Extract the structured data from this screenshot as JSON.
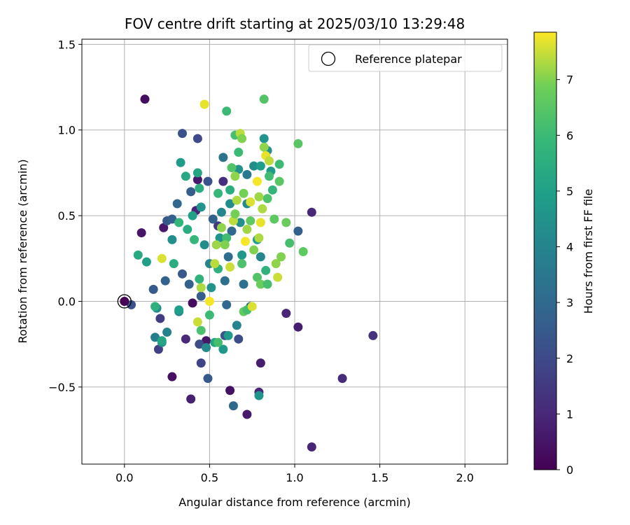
{
  "chart_data": {
    "type": "scatter",
    "title": "FOV centre drift starting at 2025/03/10 13:29:48",
    "xlabel": "Angular distance from reference (arcmin)",
    "ylabel": "Rotation from reference (arcmin)",
    "xlim": [
      -0.25,
      2.25
    ],
    "ylim": [
      -0.95,
      1.53
    ],
    "xticks": [
      0.0,
      0.5,
      1.0,
      1.5,
      2.0
    ],
    "xtick_labels": [
      "0.0",
      "0.5",
      "1.0",
      "1.5",
      "2.0"
    ],
    "yticks": [
      -0.5,
      0.0,
      0.5,
      1.0,
      1.5
    ],
    "ytick_labels": [
      "−0.5",
      "0.0",
      "0.5",
      "1.0",
      "1.5"
    ],
    "grid": true,
    "colormap": "viridis",
    "colorbar": {
      "label": "Hours from first FF file",
      "range": [
        0,
        7.85
      ],
      "ticks": [
        0,
        1,
        2,
        3,
        4,
        5,
        6,
        7
      ],
      "tick_labels": [
        "0",
        "1",
        "2",
        "3",
        "4",
        "5",
        "6",
        "7"
      ]
    },
    "legend": {
      "position": "top-right",
      "entries": [
        "Reference platepar"
      ]
    },
    "reference_point": {
      "x": 0.0,
      "y": 0.0
    },
    "points": [
      {
        "x": 0.12,
        "y": 1.18,
        "c": 0.3
      },
      {
        "x": 0.1,
        "y": 0.4,
        "c": 0.5
      },
      {
        "x": 0.23,
        "y": 0.43,
        "c": 0.6
      },
      {
        "x": 0.28,
        "y": -0.44,
        "c": 0.4
      },
      {
        "x": 0.39,
        "y": -0.57,
        "c": 0.8
      },
      {
        "x": 0.36,
        "y": -0.22,
        "c": 1.0
      },
      {
        "x": 0.4,
        "y": -0.01,
        "c": 0.3
      },
      {
        "x": 0.48,
        "y": -0.23,
        "c": 0.5
      },
      {
        "x": 0.62,
        "y": -0.52,
        "c": 0.4
      },
      {
        "x": 0.72,
        "y": -0.66,
        "c": 0.6
      },
      {
        "x": 0.79,
        "y": -0.53,
        "c": 0.9
      },
      {
        "x": 0.8,
        "y": -0.36,
        "c": 0.7
      },
      {
        "x": 1.1,
        "y": -0.85,
        "c": 0.9
      },
      {
        "x": 1.28,
        "y": -0.45,
        "c": 1.1
      },
      {
        "x": 1.46,
        "y": -0.2,
        "c": 1.3
      },
      {
        "x": 1.02,
        "y": -0.15,
        "c": 0.7
      },
      {
        "x": 0.95,
        "y": -0.07,
        "c": 0.9
      },
      {
        "x": 1.1,
        "y": 0.52,
        "c": 1.0
      },
      {
        "x": 0.43,
        "y": 0.71,
        "c": 0.6
      },
      {
        "x": 0.58,
        "y": 0.7,
        "c": 1.2
      },
      {
        "x": 0.55,
        "y": 0.44,
        "c": 1.5
      },
      {
        "x": 0.42,
        "y": 0.53,
        "c": 0.9
      },
      {
        "x": 0.04,
        "y": -0.02,
        "c": 2.2
      },
      {
        "x": 0.17,
        "y": 0.07,
        "c": 2.5
      },
      {
        "x": 0.21,
        "y": -0.1,
        "c": 1.6
      },
      {
        "x": 0.2,
        "y": -0.28,
        "c": 1.7
      },
      {
        "x": 0.24,
        "y": 0.12,
        "c": 2.8
      },
      {
        "x": 0.25,
        "y": 0.47,
        "c": 2.4
      },
      {
        "x": 0.34,
        "y": 0.98,
        "c": 2.2
      },
      {
        "x": 0.43,
        "y": 0.95,
        "c": 2.0
      },
      {
        "x": 0.49,
        "y": 0.7,
        "c": 2.3
      },
      {
        "x": 0.39,
        "y": 0.64,
        "c": 2.6
      },
      {
        "x": 0.31,
        "y": 0.57,
        "c": 2.9
      },
      {
        "x": 0.28,
        "y": 0.48,
        "c": 2.7
      },
      {
        "x": 0.44,
        "y": -0.25,
        "c": 2.1
      },
      {
        "x": 0.45,
        "y": -0.36,
        "c": 1.8
      },
      {
        "x": 0.49,
        "y": -0.45,
        "c": 2.5
      },
      {
        "x": 0.59,
        "y": -0.2,
        "c": 2.3
      },
      {
        "x": 0.67,
        "y": -0.22,
        "c": 2.1
      },
      {
        "x": 0.64,
        "y": -0.61,
        "c": 3.0
      },
      {
        "x": 0.38,
        "y": 0.1,
        "c": 2.8
      },
      {
        "x": 0.34,
        "y": 0.16,
        "c": 2.4
      },
      {
        "x": 0.45,
        "y": 0.03,
        "c": 2.6
      },
      {
        "x": 0.6,
        "y": -0.02,
        "c": 2.9
      },
      {
        "x": 1.02,
        "y": 0.41,
        "c": 2.7
      },
      {
        "x": 0.7,
        "y": 0.1,
        "c": 3.3
      },
      {
        "x": 0.58,
        "y": 0.84,
        "c": 3.4
      },
      {
        "x": 0.61,
        "y": 0.26,
        "c": 3.1
      },
      {
        "x": 0.52,
        "y": 0.48,
        "c": 2.8
      },
      {
        "x": 0.63,
        "y": 0.41,
        "c": 3.0
      },
      {
        "x": 0.59,
        "y": 0.12,
        "c": 3.2
      },
      {
        "x": 0.72,
        "y": 0.74,
        "c": 3.6
      },
      {
        "x": 0.74,
        "y": -0.03,
        "c": 3.1
      },
      {
        "x": 0.18,
        "y": -0.21,
        "c": 3.8
      },
      {
        "x": 0.19,
        "y": -0.04,
        "c": 4.2
      },
      {
        "x": 0.25,
        "y": -0.18,
        "c": 3.9
      },
      {
        "x": 0.22,
        "y": -0.24,
        "c": 4.5
      },
      {
        "x": 0.32,
        "y": -0.06,
        "c": 4.1
      },
      {
        "x": 0.28,
        "y": 0.36,
        "c": 4.4
      },
      {
        "x": 0.33,
        "y": 0.81,
        "c": 4.8
      },
      {
        "x": 0.36,
        "y": 0.73,
        "c": 5.3
      },
      {
        "x": 0.43,
        "y": 0.75,
        "c": 5.2
      },
      {
        "x": 0.44,
        "y": 0.66,
        "c": 5.5
      },
      {
        "x": 0.4,
        "y": 0.5,
        "c": 5.0
      },
      {
        "x": 0.45,
        "y": 0.55,
        "c": 4.6
      },
      {
        "x": 0.47,
        "y": 0.33,
        "c": 4.3
      },
      {
        "x": 0.5,
        "y": 0.22,
        "c": 4.0
      },
      {
        "x": 0.56,
        "y": 0.37,
        "c": 4.6
      },
      {
        "x": 0.57,
        "y": 0.52,
        "c": 4.1
      },
      {
        "x": 0.62,
        "y": 0.57,
        "c": 4.3
      },
      {
        "x": 0.67,
        "y": 0.77,
        "c": 4.5
      },
      {
        "x": 0.66,
        "y": -0.14,
        "c": 4.0
      },
      {
        "x": 0.61,
        "y": -0.2,
        "c": 4.8
      },
      {
        "x": 0.48,
        "y": -0.27,
        "c": 4.2
      },
      {
        "x": 0.53,
        "y": -0.24,
        "c": 5.2
      },
      {
        "x": 0.58,
        "y": -0.28,
        "c": 4.7
      },
      {
        "x": 0.79,
        "y": -0.55,
        "c": 4.6
      },
      {
        "x": 0.76,
        "y": 0.79,
        "c": 4.3
      },
      {
        "x": 0.8,
        "y": 0.79,
        "c": 4.9
      },
      {
        "x": 0.8,
        "y": 0.26,
        "c": 4.1
      },
      {
        "x": 0.78,
        "y": 0.36,
        "c": 4.9
      },
      {
        "x": 0.82,
        "y": 0.95,
        "c": 4.6
      },
      {
        "x": 0.84,
        "y": 0.88,
        "c": 4.4
      },
      {
        "x": 0.86,
        "y": 0.76,
        "c": 4.8
      },
      {
        "x": 0.72,
        "y": 0.57,
        "c": 4.2
      },
      {
        "x": 0.69,
        "y": 0.27,
        "c": 4.7
      },
      {
        "x": 0.68,
        "y": 0.46,
        "c": 4.4
      },
      {
        "x": 0.32,
        "y": -0.05,
        "c": 4.9
      },
      {
        "x": 0.51,
        "y": 0.08,
        "c": 4.5
      },
      {
        "x": 0.08,
        "y": 0.27,
        "c": 5.3
      },
      {
        "x": 0.13,
        "y": 0.23,
        "c": 5.0
      },
      {
        "x": 0.18,
        "y": -0.03,
        "c": 5.6
      },
      {
        "x": 0.22,
        "y": -0.23,
        "c": 5.2
      },
      {
        "x": 0.29,
        "y": 0.22,
        "c": 5.5
      },
      {
        "x": 0.32,
        "y": 0.46,
        "c": 5.8
      },
      {
        "x": 0.37,
        "y": 0.42,
        "c": 5.4
      },
      {
        "x": 0.41,
        "y": 0.36,
        "c": 5.9
      },
      {
        "x": 0.44,
        "y": 0.13,
        "c": 5.7
      },
      {
        "x": 0.45,
        "y": -0.17,
        "c": 6.3
      },
      {
        "x": 0.5,
        "y": -0.08,
        "c": 6.0
      },
      {
        "x": 0.55,
        "y": -0.24,
        "c": 6.2
      },
      {
        "x": 0.55,
        "y": 0.19,
        "c": 5.6
      },
      {
        "x": 0.55,
        "y": 0.63,
        "c": 5.9
      },
      {
        "x": 0.6,
        "y": 1.11,
        "c": 6.0
      },
      {
        "x": 0.63,
        "y": 0.78,
        "c": 6.4
      },
      {
        "x": 0.65,
        "y": 0.97,
        "c": 6.2
      },
      {
        "x": 0.67,
        "y": 0.87,
        "c": 6.0
      },
      {
        "x": 0.69,
        "y": 0.22,
        "c": 6.3
      },
      {
        "x": 0.7,
        "y": -0.06,
        "c": 6.7
      },
      {
        "x": 0.72,
        "y": -0.05,
        "c": 6.2
      },
      {
        "x": 0.78,
        "y": 0.14,
        "c": 6.4
      },
      {
        "x": 0.8,
        "y": 0.1,
        "c": 6.8
      },
      {
        "x": 0.83,
        "y": 0.18,
        "c": 5.7
      },
      {
        "x": 0.84,
        "y": 0.1,
        "c": 6.2
      },
      {
        "x": 0.84,
        "y": 0.6,
        "c": 6.3
      },
      {
        "x": 0.88,
        "y": 0.48,
        "c": 6.6
      },
      {
        "x": 0.91,
        "y": 0.8,
        "c": 6.0
      },
      {
        "x": 0.91,
        "y": 0.7,
        "c": 6.5
      },
      {
        "x": 0.95,
        "y": 0.46,
        "c": 6.8
      },
      {
        "x": 0.97,
        "y": 0.34,
        "c": 6.2
      },
      {
        "x": 1.02,
        "y": 0.92,
        "c": 6.5
      },
      {
        "x": 1.05,
        "y": 0.29,
        "c": 6.6
      },
      {
        "x": 0.82,
        "y": 1.18,
        "c": 6.4
      },
      {
        "x": 0.85,
        "y": 0.73,
        "c": 6.1
      },
      {
        "x": 0.87,
        "y": 0.65,
        "c": 5.8
      },
      {
        "x": 0.74,
        "y": 0.47,
        "c": 6.6
      },
      {
        "x": 0.6,
        "y": 0.37,
        "c": 6.1
      },
      {
        "x": 0.62,
        "y": 0.65,
        "c": 5.5
      },
      {
        "x": 0.22,
        "y": 0.25,
        "c": 7.6
      },
      {
        "x": 0.43,
        "y": -0.12,
        "c": 7.5
      },
      {
        "x": 0.47,
        "y": 1.15,
        "c": 7.7
      },
      {
        "x": 0.5,
        "y": 0.0,
        "c": 7.8
      },
      {
        "x": 0.53,
        "y": 0.22,
        "c": 7.4
      },
      {
        "x": 0.45,
        "y": 0.08,
        "c": 7.3
      },
      {
        "x": 0.54,
        "y": 0.33,
        "c": 7.2
      },
      {
        "x": 0.59,
        "y": 0.33,
        "c": 7.0
      },
      {
        "x": 0.62,
        "y": 0.2,
        "c": 7.5
      },
      {
        "x": 0.65,
        "y": 0.73,
        "c": 7.1
      },
      {
        "x": 0.68,
        "y": 0.98,
        "c": 7.4
      },
      {
        "x": 0.69,
        "y": 0.95,
        "c": 7.0
      },
      {
        "x": 0.71,
        "y": 0.35,
        "c": 7.8
      },
      {
        "x": 0.72,
        "y": 0.42,
        "c": 7.2
      },
      {
        "x": 0.75,
        "y": -0.03,
        "c": 7.6
      },
      {
        "x": 0.78,
        "y": 0.7,
        "c": 7.8
      },
      {
        "x": 0.79,
        "y": 0.61,
        "c": 7.2
      },
      {
        "x": 0.8,
        "y": 0.46,
        "c": 7.7
      },
      {
        "x": 0.81,
        "y": 0.54,
        "c": 7.3
      },
      {
        "x": 0.82,
        "y": 0.9,
        "c": 7.1
      },
      {
        "x": 0.83,
        "y": 0.85,
        "c": 7.7
      },
      {
        "x": 0.85,
        "y": 0.82,
        "c": 7.4
      },
      {
        "x": 0.89,
        "y": 0.22,
        "c": 7.1
      },
      {
        "x": 0.9,
        "y": 0.14,
        "c": 7.5
      },
      {
        "x": 0.92,
        "y": 0.26,
        "c": 7.0
      },
      {
        "x": 0.66,
        "y": 0.59,
        "c": 7.3
      },
      {
        "x": 0.74,
        "y": 0.58,
        "c": 7.6
      },
      {
        "x": 0.57,
        "y": 0.43,
        "c": 7.1
      },
      {
        "x": 0.64,
        "y": 0.47,
        "c": 7.4
      },
      {
        "x": 0.76,
        "y": 0.3,
        "c": 7.0
      },
      {
        "x": 0.79,
        "y": 0.37,
        "c": 7.3
      },
      {
        "x": 0.7,
        "y": 0.63,
        "c": 6.9
      },
      {
        "x": 0.65,
        "y": 0.51,
        "c": 6.9
      }
    ]
  }
}
